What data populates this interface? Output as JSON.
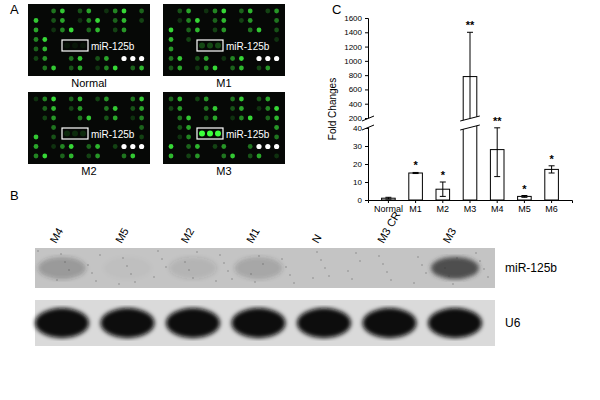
{
  "panel_labels": [
    "A",
    "B",
    "C"
  ],
  "panel_a": {
    "probe_label": "miR-125b",
    "images": [
      {
        "label": "Normal"
      },
      {
        "label": "M1"
      },
      {
        "label": "M2"
      },
      {
        "label": "M3"
      }
    ]
  },
  "panel_b": {
    "lanes": [
      "M4",
      "M5",
      "M2",
      "M1",
      "N",
      "M3 CR",
      "M3"
    ],
    "rows": [
      "miR-125b",
      "U6"
    ]
  },
  "chart_data": {
    "type": "bar",
    "y_label": "Fold Changes",
    "categories": [
      "Normal",
      "M1",
      "M2",
      "M3",
      "M4",
      "M5",
      "M6"
    ],
    "values": [
      1,
      15,
      6,
      780,
      28,
      2,
      17
    ],
    "errors": [
      0.5,
      0.3,
      4,
      620,
      15,
      0.5,
      2
    ],
    "significance": [
      null,
      "*",
      "*",
      "**",
      "**",
      "*",
      "*"
    ],
    "ylim": [
      0,
      1600
    ],
    "y_break": [
      40,
      200
    ],
    "yticks": [
      0,
      10,
      20,
      30,
      40,
      200,
      400,
      600,
      800,
      1000,
      1200,
      1400,
      1600
    ],
    "color": "#ffffff"
  }
}
